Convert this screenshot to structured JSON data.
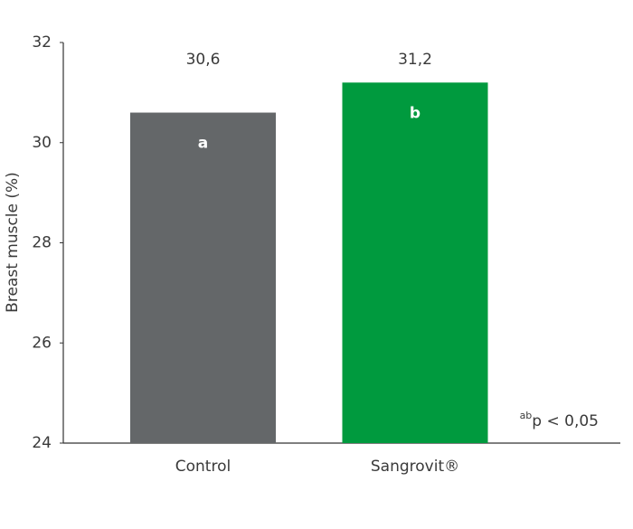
{
  "chart_data": {
    "type": "bar",
    "y_label": "Breast muscle (%)",
    "categories": [
      "Control",
      "Sangrovit®"
    ],
    "values": [
      30.6,
      31.2
    ],
    "value_labels": [
      "30,6",
      "31,2"
    ],
    "significance": [
      "a",
      "b"
    ],
    "colors": [
      "#646769",
      "#009a3e"
    ],
    "ylim": [
      24,
      32
    ],
    "yticks": [
      24,
      26,
      28,
      30,
      32
    ],
    "note": {
      "superscript": "ab",
      "text": "p < 0,05"
    }
  }
}
